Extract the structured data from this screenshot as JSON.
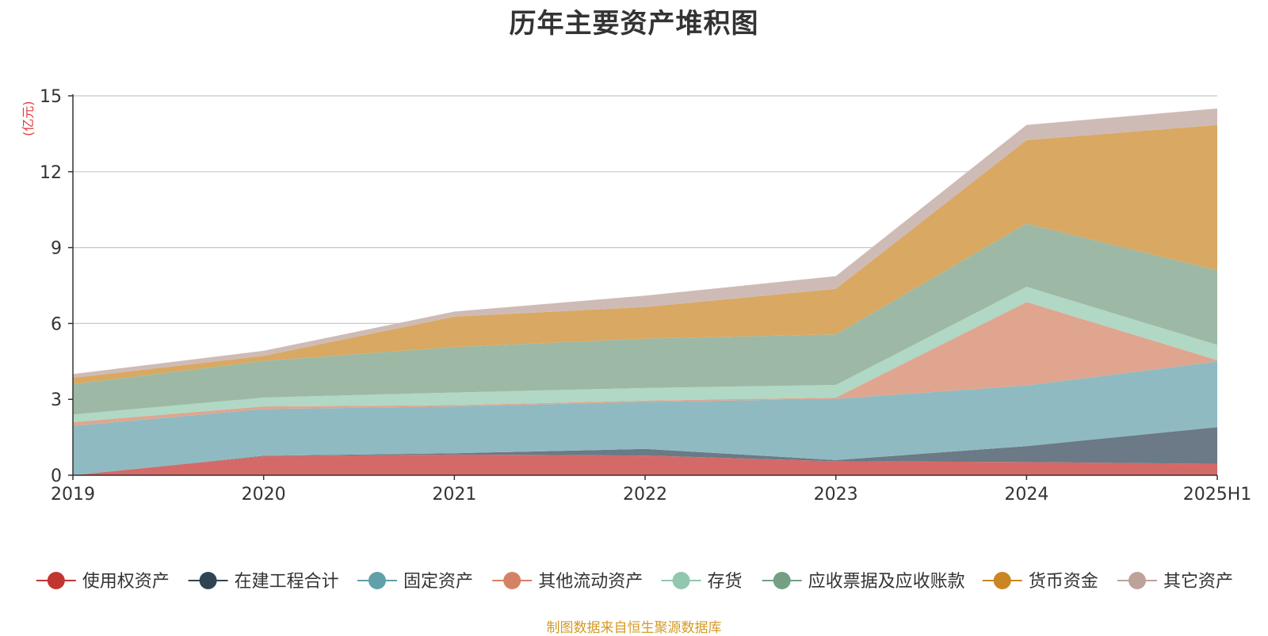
{
  "chart_data": {
    "type": "area",
    "stacked": true,
    "title": "历年主要资产堆积图",
    "unit_label": "(亿元)",
    "x": [
      "2019",
      "2020",
      "2021",
      "2022",
      "2023",
      "2024",
      "2025H1"
    ],
    "ylim": [
      0,
      15
    ],
    "yticks": [
      0,
      3,
      6,
      9,
      12,
      15
    ],
    "grid": true,
    "legend_position": "bottom",
    "series": [
      {
        "name": "使用权资产",
        "color": "#c23531",
        "fill": "#d46a67",
        "values": [
          0.0,
          0.75,
          0.82,
          0.78,
          0.55,
          0.52,
          0.45
        ]
      },
      {
        "name": "在建工程合计",
        "color": "#2f4554",
        "fill": "#6b7a86",
        "values": [
          0.0,
          0.02,
          0.05,
          0.26,
          0.05,
          0.63,
          1.45
        ]
      },
      {
        "name": "固定资产",
        "color": "#61a0a8",
        "fill": "#90bac1",
        "values": [
          1.95,
          1.85,
          1.85,
          1.86,
          2.42,
          2.4,
          2.6
        ]
      },
      {
        "name": "其他流动资产",
        "color": "#d48265",
        "fill": "#e0a58f",
        "values": [
          0.15,
          0.1,
          0.05,
          0.05,
          0.05,
          3.3,
          0.05
        ]
      },
      {
        "name": "存货",
        "color": "#91c7ae",
        "fill": "#b0d8c5",
        "values": [
          0.3,
          0.35,
          0.5,
          0.5,
          0.5,
          0.6,
          0.6
        ]
      },
      {
        "name": "应收票据及应收账款",
        "color": "#749f83",
        "fill": "#9db9a5",
        "values": [
          1.2,
          1.45,
          1.8,
          1.95,
          2.0,
          2.5,
          2.95
        ]
      },
      {
        "name": "货币资金",
        "color": "#ca8622",
        "fill": "#d9a862",
        "values": [
          0.25,
          0.2,
          1.2,
          1.25,
          1.8,
          3.3,
          5.75
        ]
      },
      {
        "name": "其它资产",
        "color": "#bda29a",
        "fill": "#cfbbb6",
        "values": [
          0.15,
          0.2,
          0.2,
          0.45,
          0.5,
          0.6,
          0.65
        ]
      }
    ]
  },
  "footer": {
    "source": "制图数据来自恒生聚源数据库"
  }
}
